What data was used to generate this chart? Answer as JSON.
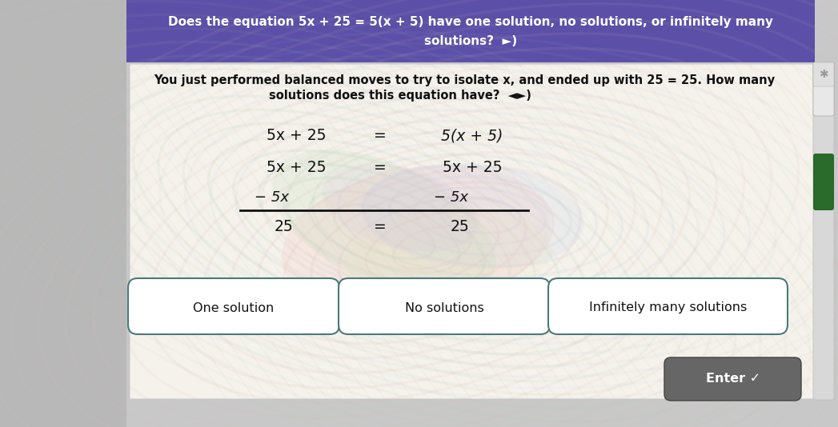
{
  "title_bg_color": "#5b4fa8",
  "title_text_color": "#ffffff",
  "title_line1": "Does the equation 5x + 25 = 5(x + 5) have one solution, no solutions, or infinitely many",
  "title_line2": "solutions?  ◄►)",
  "subtitle_line1": "You just performed balanced moves to try to isolate x, and ended up with 25 = 25. How many",
  "subtitle_line2": "solutions does this equation have?  ◄►)",
  "eq_row1_left": "5x + 25",
  "eq_row1_mid": "=",
  "eq_row1_right": "5(x + 5)",
  "eq_row2_left": "5x + 25",
  "eq_row2_mid": "=",
  "eq_row2_right": "5x + 25",
  "eq_row3_left": "− 5x",
  "eq_row3_right": "− 5x",
  "eq_row4_left": "25",
  "eq_row4_mid": "=",
  "eq_row4_right": "25",
  "btn1_label": "One solution",
  "btn2_label": "No solutions",
  "btn3_label": "Infinitely many solutions",
  "btn_bg": "white",
  "btn_border_color": "#4a7a7a",
  "enter_btn_label": "Enter ✓",
  "enter_btn_color": "#666666",
  "enter_btn_text_color": "#ffffff",
  "line_color": "#111111",
  "text_color": "#111111",
  "card_bg": "#f5f2ec",
  "left_strip_color": "#b8b8b8",
  "main_bg_color": "#c8c8c8",
  "scroll_bg": "#d0d0d0",
  "scroll_thumb": "#888888",
  "scroll_thumb_dark": "#2a6a2a",
  "figsize": [
    10.47,
    5.34
  ],
  "dpi": 100
}
